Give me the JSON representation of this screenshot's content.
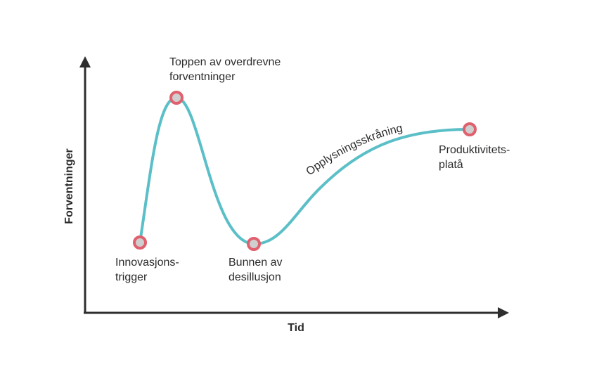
{
  "axes": {
    "y_title": "Forventninger",
    "x_title": "Tid",
    "axis_color": "#2e2e2e"
  },
  "curve": {
    "color": "#5bbfc8",
    "label": "Opplysningsskråning"
  },
  "markers": {
    "ring_color": "#e0606e",
    "fill_color": "#cfcfcf"
  },
  "labels": {
    "trigger": [
      "Innovasjons-",
      "trigger"
    ],
    "peak": [
      "Toppen av overdrevne",
      "forventninger"
    ],
    "trough": [
      "Bunnen av",
      "desillusjon"
    ],
    "plateau": [
      "Produktivitets-",
      "platå"
    ]
  }
}
